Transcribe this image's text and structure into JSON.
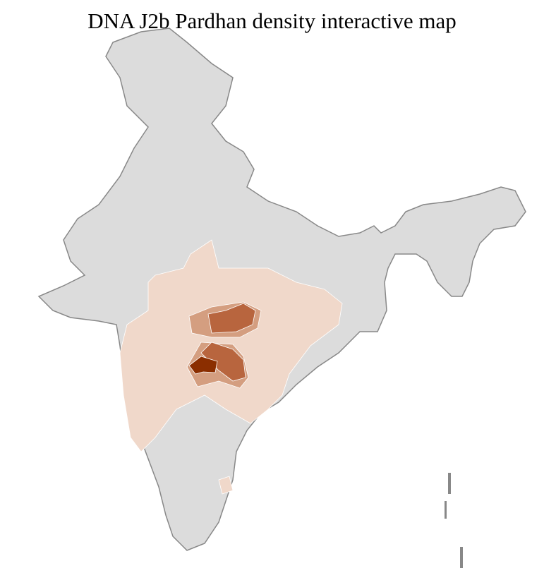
{
  "title": "DNA J2b Pardhan density interactive map",
  "colors": {
    "background_region": "#dcdcdc",
    "border": "#888888",
    "district_border": "#ffffff",
    "level_1": "#f0d8ca",
    "level_2": "#d49e80",
    "level_3": "#b8653e",
    "level_4": "#8b2e00"
  }
}
